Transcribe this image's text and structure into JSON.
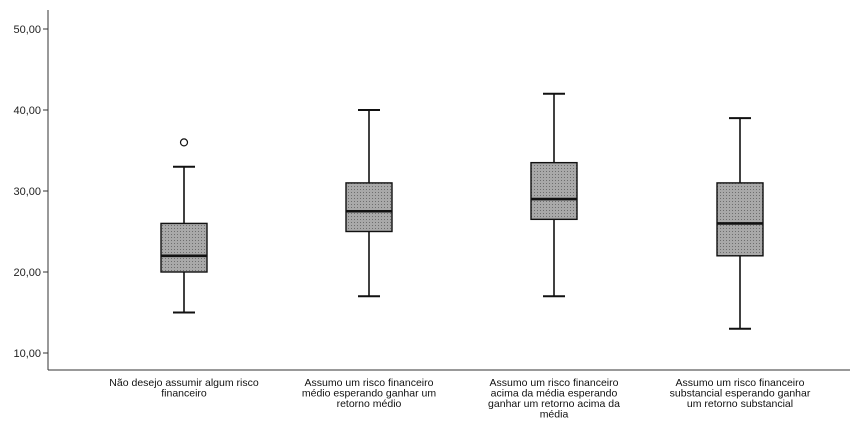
{
  "chart_data": {
    "type": "boxplot",
    "title": "",
    "xlabel": "",
    "ylabel": "",
    "ylim": [
      8,
      52
    ],
    "y_ticks": [
      10,
      20,
      30,
      40,
      50
    ],
    "y_tick_labels": [
      "10,00",
      "20,00",
      "30,00",
      "40,00",
      "50,00"
    ],
    "grid": false,
    "colors": {
      "box_fill": "#a9a9a9",
      "stroke": "#111111",
      "axis": "#333333"
    },
    "categories": [
      {
        "label_lines": [
          "Não desejo assumir algum risco",
          "financeiro"
        ],
        "min": 15,
        "q1": 20,
        "median": 22,
        "q3": 26,
        "max": 33,
        "outliers": [
          36
        ]
      },
      {
        "label_lines": [
          "Assumo um risco financeiro",
          "médio esperando ganhar um",
          "retorno médio"
        ],
        "min": 17,
        "q1": 25,
        "median": 27.5,
        "q3": 31,
        "max": 40,
        "outliers": []
      },
      {
        "label_lines": [
          "Assumo um risco financeiro",
          "acima da média esperando",
          "ganhar um retorno acima da",
          "média"
        ],
        "min": 17,
        "q1": 26.5,
        "median": 29,
        "q3": 33.5,
        "max": 42,
        "outliers": []
      },
      {
        "label_lines": [
          "Assumo um risco financeiro",
          "substancial esperando ganhar",
          "um retorno substancial"
        ],
        "min": 13,
        "q1": 22,
        "median": 26,
        "q3": 31,
        "max": 39,
        "outliers": []
      }
    ]
  }
}
